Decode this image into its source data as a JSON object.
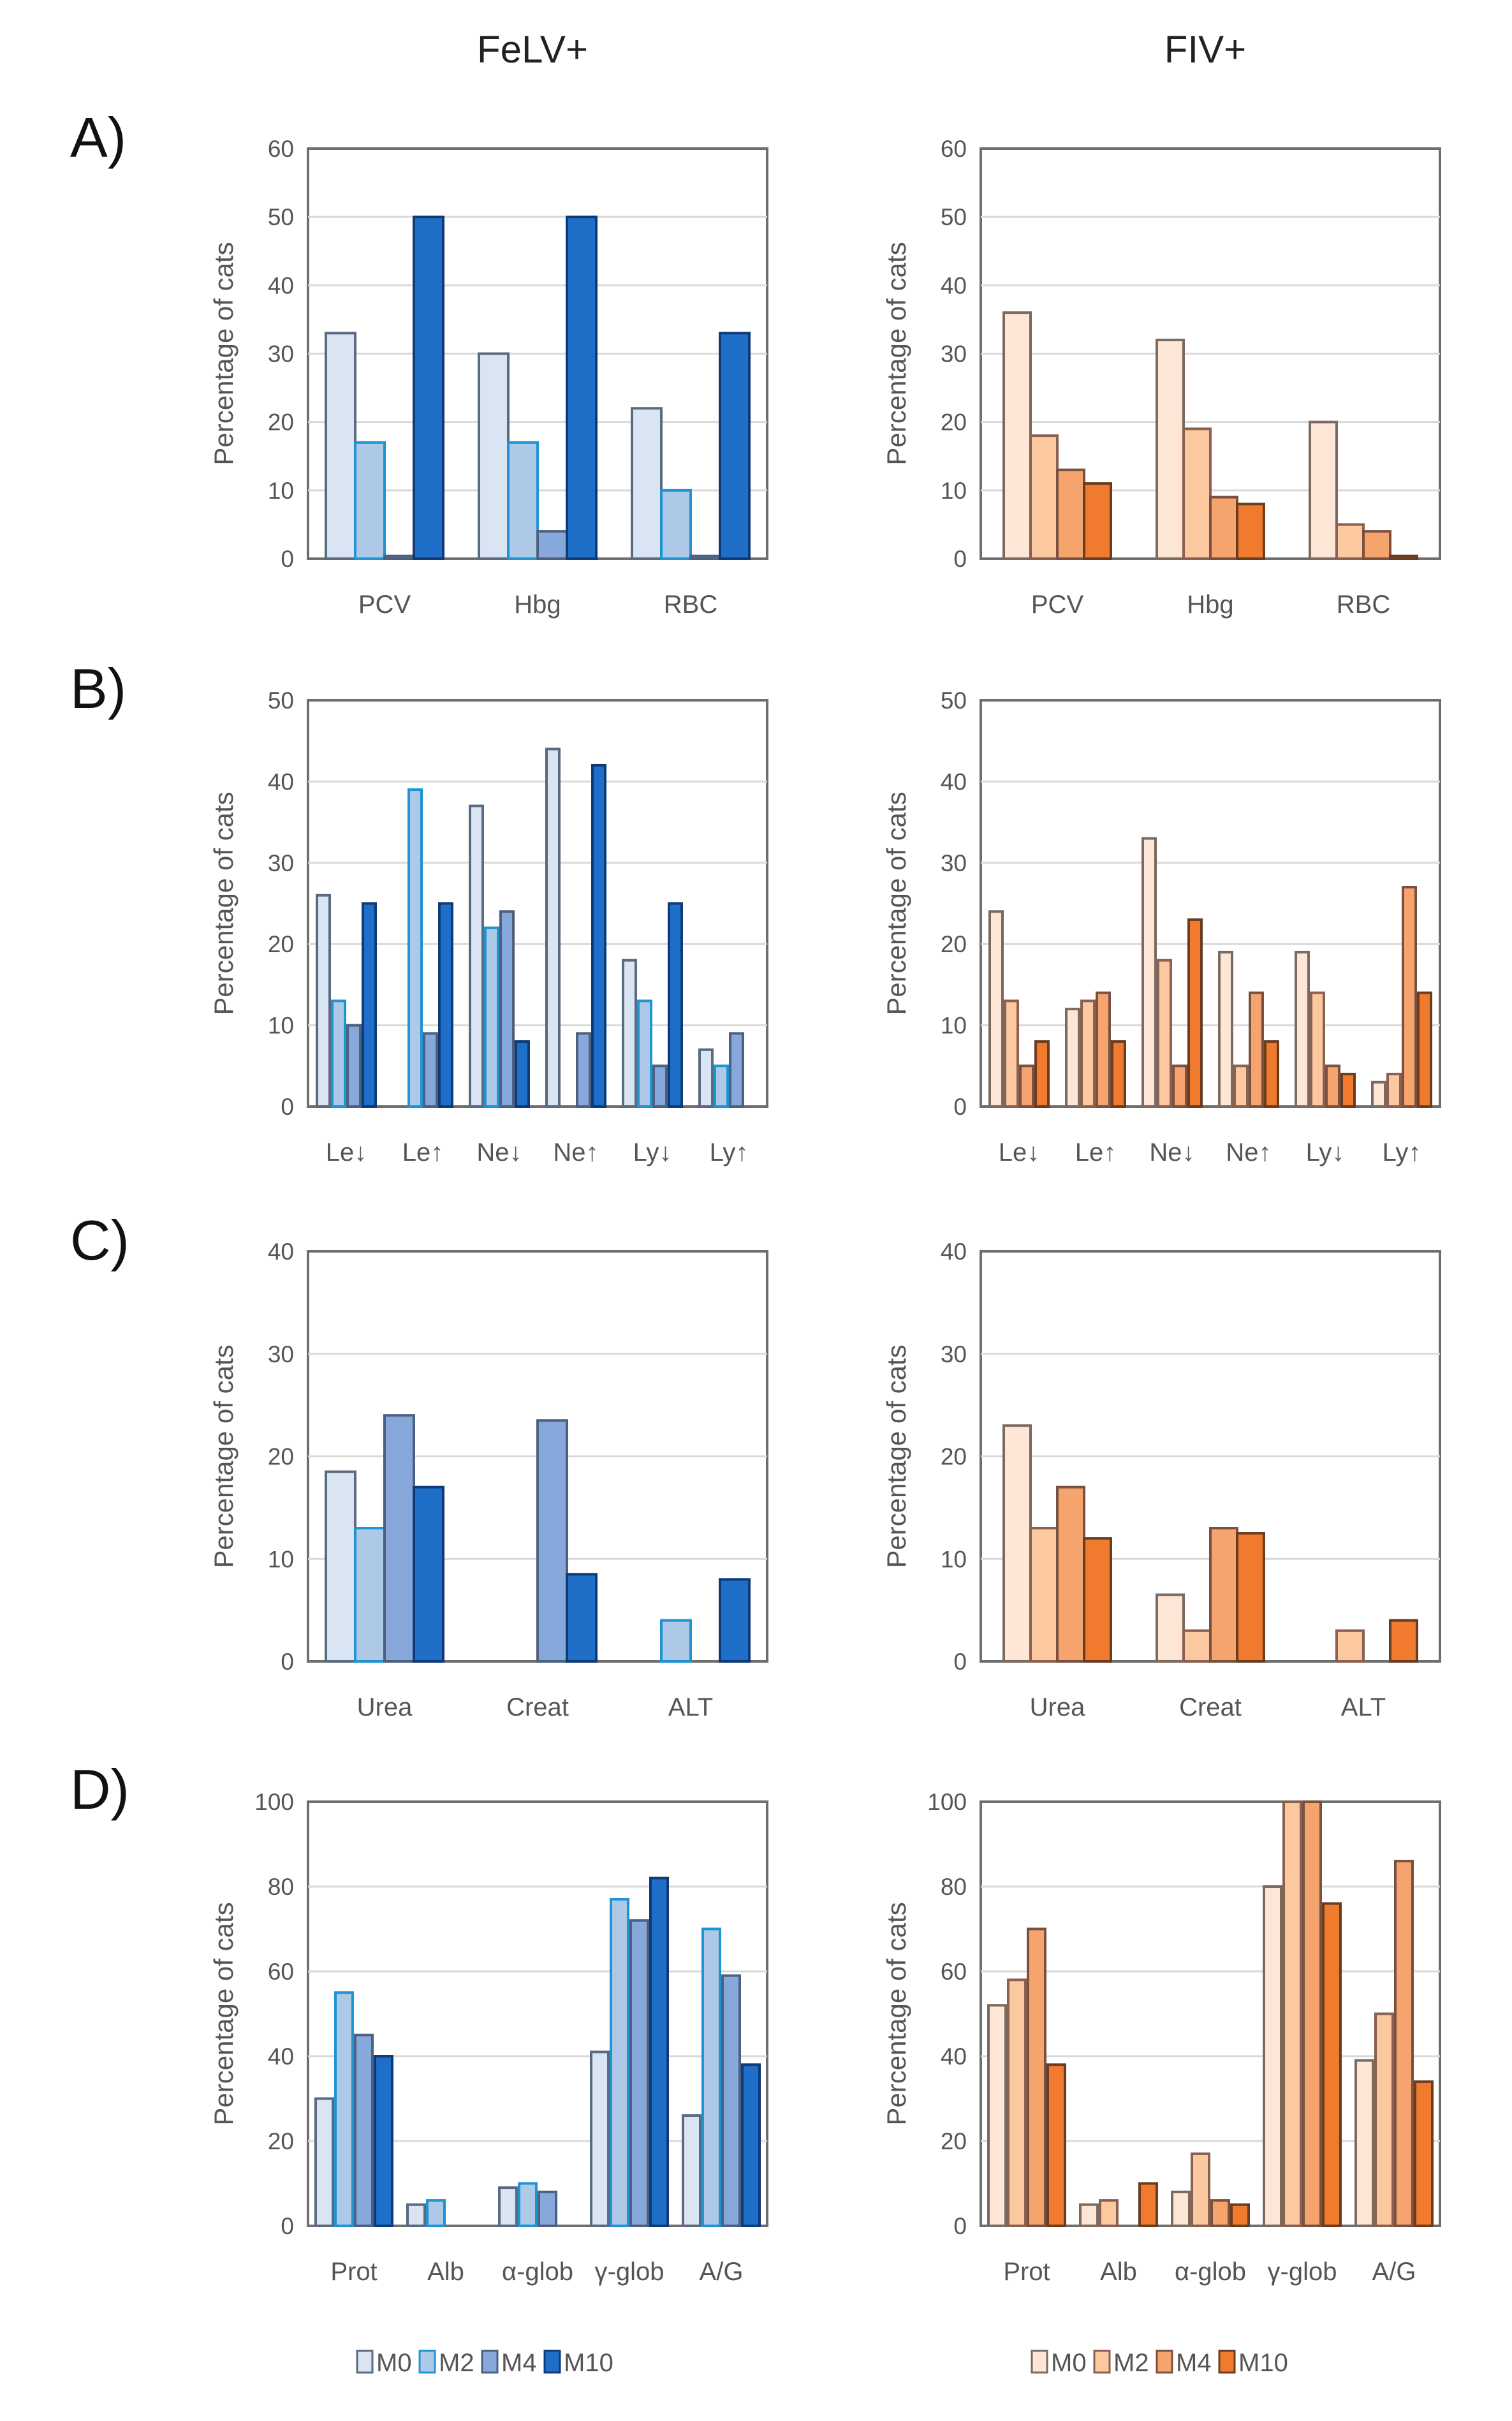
{
  "columns": {
    "left": "FeLV+",
    "right": "FIV+"
  },
  "ylabel": "Percentage of cats",
  "legend": [
    "M0",
    "M2",
    "M4",
    "M10"
  ],
  "palettes": {
    "felv": {
      "fill": [
        "#dae5f3",
        "#aec8e8",
        "#87a8da",
        "#1f6fc8"
      ],
      "stroke": [
        "#5a6a80",
        "#1f94d3",
        "#4d6080",
        "#0e3a78"
      ]
    },
    "fiv": {
      "fill": [
        "#fde6d6",
        "#fbc8a0",
        "#f6a46e",
        "#f07a2e"
      ],
      "stroke": [
        "#7a6a60",
        "#8a6050",
        "#7a5040",
        "#6a3c20"
      ]
    }
  },
  "chart_data": [
    {
      "id": "A-felv",
      "panel": "A)",
      "type": "bar",
      "ylim": [
        0,
        60
      ],
      "yticks": [
        0,
        10,
        20,
        30,
        40,
        50,
        60
      ],
      "categories": [
        "PCV",
        "Hbg",
        "RBC"
      ],
      "series": [
        {
          "name": "M0",
          "values": [
            33,
            30,
            22
          ]
        },
        {
          "name": "M2",
          "values": [
            17,
            17,
            10
          ]
        },
        {
          "name": "M4",
          "values": [
            0.4,
            4,
            0.4
          ]
        },
        {
          "name": "M10",
          "values": [
            50,
            50,
            33
          ]
        }
      ]
    },
    {
      "id": "A-fiv",
      "panel": "",
      "type": "bar",
      "ylim": [
        0,
        60
      ],
      "yticks": [
        0,
        10,
        20,
        30,
        40,
        50,
        60
      ],
      "categories": [
        "PCV",
        "Hbg",
        "RBC"
      ],
      "series": [
        {
          "name": "M0",
          "values": [
            36,
            32,
            20
          ]
        },
        {
          "name": "M2",
          "values": [
            18,
            19,
            5
          ]
        },
        {
          "name": "M4",
          "values": [
            13,
            9,
            4
          ]
        },
        {
          "name": "M10",
          "values": [
            11,
            8,
            0.4
          ]
        }
      ]
    },
    {
      "id": "B-felv",
      "panel": "B)",
      "type": "bar",
      "ylim": [
        0,
        50
      ],
      "yticks": [
        0,
        10,
        20,
        30,
        40,
        50
      ],
      "categories": [
        "Le↓",
        "Le↑",
        "Ne↓",
        "Ne↑",
        "Ly↓",
        "Ly↑"
      ],
      "series": [
        {
          "name": "M0",
          "values": [
            26,
            0,
            37,
            44,
            18,
            7
          ]
        },
        {
          "name": "M2",
          "values": [
            13,
            39,
            22,
            0,
            13,
            5
          ]
        },
        {
          "name": "M4",
          "values": [
            10,
            9,
            24,
            9,
            5,
            9
          ]
        },
        {
          "name": "M10",
          "values": [
            25,
            25,
            8,
            42,
            25,
            0
          ]
        }
      ]
    },
    {
      "id": "B-fiv",
      "panel": "",
      "type": "bar",
      "ylim": [
        0,
        50
      ],
      "yticks": [
        0,
        10,
        20,
        30,
        40,
        50
      ],
      "categories": [
        "Le↓",
        "Le↑",
        "Ne↓",
        "Ne↑",
        "Ly↓",
        "Ly↑"
      ],
      "series": [
        {
          "name": "M0",
          "values": [
            24,
            12,
            33,
            19,
            19,
            3
          ]
        },
        {
          "name": "M2",
          "values": [
            13,
            13,
            18,
            5,
            14,
            4
          ]
        },
        {
          "name": "M4",
          "values": [
            5,
            14,
            5,
            14,
            5,
            27
          ]
        },
        {
          "name": "M10",
          "values": [
            8,
            8,
            23,
            8,
            4,
            14
          ]
        }
      ]
    },
    {
      "id": "C-felv",
      "panel": "C)",
      "type": "bar",
      "ylim": [
        0,
        40
      ],
      "yticks": [
        0,
        10,
        20,
        30,
        40
      ],
      "categories": [
        "Urea",
        "Creat",
        "ALT"
      ],
      "series": [
        {
          "name": "M0",
          "values": [
            18.5,
            0,
            0
          ]
        },
        {
          "name": "M2",
          "values": [
            13,
            0,
            4
          ]
        },
        {
          "name": "M4",
          "values": [
            24,
            23.5,
            0
          ]
        },
        {
          "name": "M10",
          "values": [
            17,
            8.5,
            8
          ]
        }
      ]
    },
    {
      "id": "C-fiv",
      "panel": "",
      "type": "bar",
      "ylim": [
        0,
        40
      ],
      "yticks": [
        0,
        10,
        20,
        30,
        40
      ],
      "categories": [
        "Urea",
        "Creat",
        "ALT"
      ],
      "series": [
        {
          "name": "M0",
          "values": [
            23,
            6.5,
            0
          ]
        },
        {
          "name": "M2",
          "values": [
            13,
            3,
            3
          ]
        },
        {
          "name": "M4",
          "values": [
            17,
            13,
            0
          ]
        },
        {
          "name": "M10",
          "values": [
            12,
            12.5,
            4
          ]
        }
      ]
    },
    {
      "id": "D-felv",
      "panel": "D)",
      "type": "bar",
      "ylim": [
        0,
        100
      ],
      "yticks": [
        0,
        20,
        40,
        60,
        80,
        100
      ],
      "categories": [
        "Prot",
        "Alb",
        "α-glob",
        "γ-glob",
        "A/G"
      ],
      "series": [
        {
          "name": "M0",
          "values": [
            30,
            5,
            9,
            41,
            26
          ]
        },
        {
          "name": "M2",
          "values": [
            55,
            6,
            10,
            77,
            70
          ]
        },
        {
          "name": "M4",
          "values": [
            45,
            0,
            8,
            72,
            59
          ]
        },
        {
          "name": "M10",
          "values": [
            40,
            0,
            0,
            82,
            38
          ]
        }
      ]
    },
    {
      "id": "D-fiv",
      "panel": "",
      "type": "bar",
      "ylim": [
        0,
        100
      ],
      "yticks": [
        0,
        20,
        40,
        60,
        80,
        100
      ],
      "categories": [
        "Prot",
        "Alb",
        "α-glob",
        "γ-glob",
        "A/G"
      ],
      "series": [
        {
          "name": "M0",
          "values": [
            52,
            5,
            8,
            80,
            39
          ]
        },
        {
          "name": "M2",
          "values": [
            58,
            6,
            17,
            100,
            50
          ]
        },
        {
          "name": "M4",
          "values": [
            70,
            0,
            6,
            100,
            86
          ]
        },
        {
          "name": "M10",
          "values": [
            38,
            10,
            5,
            76,
            34
          ]
        }
      ]
    }
  ]
}
